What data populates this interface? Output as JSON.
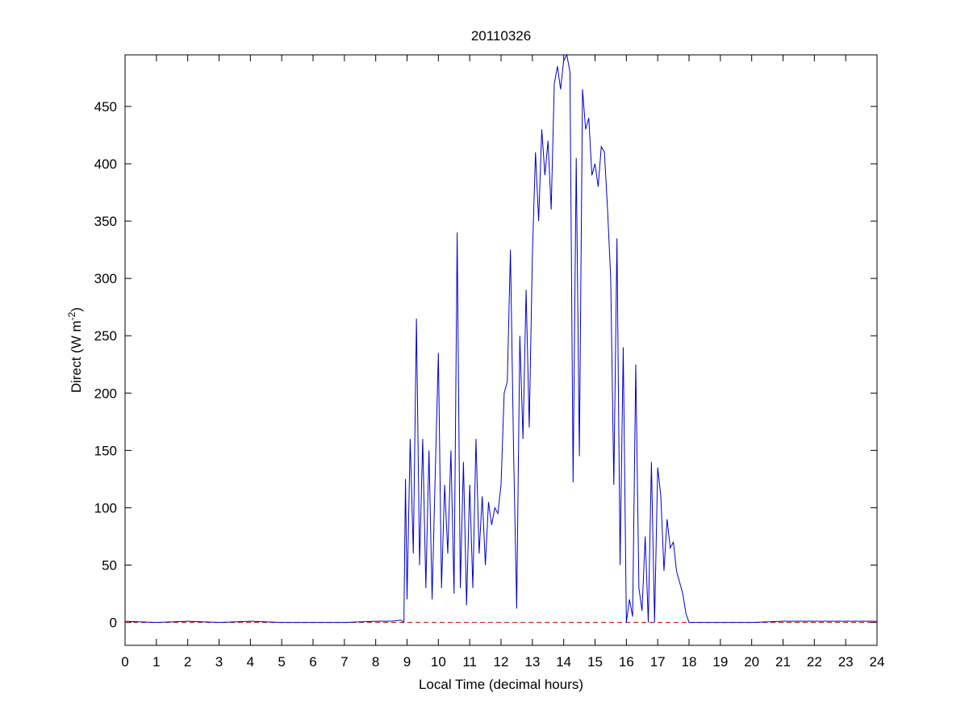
{
  "chart_data": {
    "type": "line",
    "title": "20110326",
    "xlabel": "Local Time (decimal hours)",
    "ylabel": {
      "text": "Direct (W m",
      "superscript": "-2",
      "suffix": ")"
    },
    "xlim": [
      0,
      24
    ],
    "ylim": [
      -20,
      495
    ],
    "xticks": [
      0,
      1,
      2,
      3,
      4,
      5,
      6,
      7,
      8,
      9,
      10,
      11,
      12,
      13,
      14,
      15,
      16,
      17,
      18,
      19,
      20,
      21,
      22,
      23,
      24
    ],
    "yticks": [
      0,
      50,
      100,
      150,
      200,
      250,
      300,
      350,
      400,
      450
    ],
    "x": [
      0,
      1,
      2,
      3,
      4,
      5,
      6,
      7,
      8,
      8.5,
      8.8,
      8.9,
      8.95,
      9.0,
      9.1,
      9.2,
      9.3,
      9.4,
      9.5,
      9.6,
      9.7,
      9.8,
      9.9,
      10.0,
      10.1,
      10.2,
      10.3,
      10.4,
      10.5,
      10.6,
      10.7,
      10.8,
      10.9,
      11.0,
      11.1,
      11.2,
      11.3,
      11.4,
      11.5,
      11.6,
      11.7,
      11.8,
      11.9,
      12.0,
      12.1,
      12.2,
      12.3,
      12.4,
      12.5,
      12.6,
      12.7,
      12.8,
      12.9,
      13.0,
      13.1,
      13.2,
      13.3,
      13.4,
      13.5,
      13.6,
      13.7,
      13.8,
      13.9,
      14.0,
      14.1,
      14.2,
      14.3,
      14.4,
      14.5,
      14.6,
      14.7,
      14.8,
      14.9,
      15.0,
      15.1,
      15.2,
      15.3,
      15.4,
      15.5,
      15.6,
      15.7,
      15.8,
      15.9,
      16.0,
      16.1,
      16.2,
      16.3,
      16.4,
      16.5,
      16.6,
      16.7,
      16.8,
      16.9,
      17.0,
      17.1,
      17.2,
      17.3,
      17.4,
      17.5,
      17.6,
      17.7,
      17.8,
      17.9,
      18.0,
      19,
      20,
      21,
      22,
      23,
      24
    ],
    "series": [
      {
        "name": "Direct",
        "color": "#0000cc",
        "values": [
          1,
          0,
          1,
          0,
          1,
          0,
          0,
          0,
          1,
          1,
          2,
          0,
          125,
          20,
          160,
          60,
          265,
          50,
          160,
          30,
          150,
          20,
          130,
          235,
          30,
          120,
          60,
          150,
          25,
          340,
          30,
          140,
          15,
          120,
          30,
          160,
          60,
          110,
          50,
          105,
          85,
          100,
          95,
          120,
          200,
          210,
          325,
          150,
          12,
          250,
          160,
          290,
          170,
          320,
          410,
          350,
          430,
          390,
          420,
          360,
          470,
          485,
          465,
          490,
          495,
          480,
          122,
          405,
          145,
          465,
          430,
          440,
          390,
          400,
          380,
          415,
          410,
          360,
          300,
          120,
          335,
          50,
          240,
          0,
          20,
          5,
          225,
          30,
          10,
          75,
          0,
          140,
          0,
          135,
          110,
          45,
          90,
          65,
          70,
          45,
          35,
          25,
          8,
          0,
          0,
          0,
          1,
          1,
          1,
          1
        ]
      }
    ],
    "reference_line": {
      "y": 0,
      "color": "#cc0000"
    }
  }
}
